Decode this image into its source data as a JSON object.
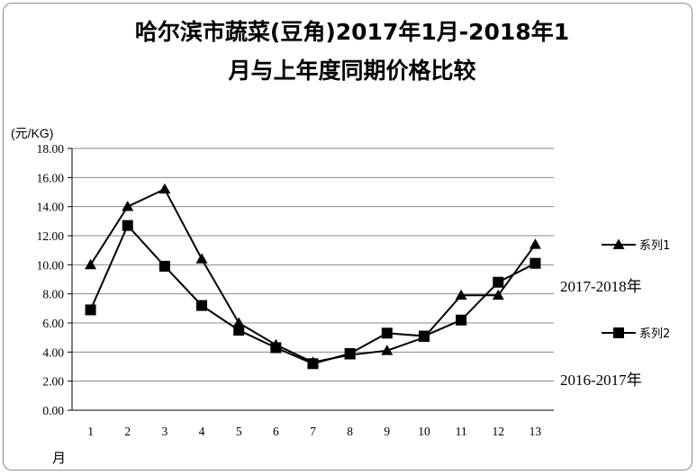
{
  "chart_data": {
    "type": "line",
    "title_lines": [
      "哈尔滨市蔬菜(豆角)2017年1月-2018年1",
      "月与上年度同期价格比较"
    ],
    "ylabel": "(元/KG)",
    "xlabel": "月",
    "x": [
      1,
      2,
      3,
      4,
      5,
      6,
      7,
      8,
      9,
      10,
      11,
      12,
      13
    ],
    "y_ticks": [
      "0.00",
      "2.00",
      "4.00",
      "6.00",
      "8.00",
      "10.00",
      "12.00",
      "14.00",
      "16.00",
      "18.00"
    ],
    "ylim": [
      0,
      18
    ],
    "grid": true,
    "legend_position": "right",
    "series": [
      {
        "name": "系列1",
        "annotation": "2017-2018年",
        "marker": "triangle",
        "color": "#000000",
        "values": [
          10.0,
          14.0,
          15.2,
          10.4,
          6.0,
          4.5,
          3.3,
          3.8,
          4.1,
          5.0,
          7.9,
          7.9,
          11.4
        ]
      },
      {
        "name": "系列2",
        "annotation": "2016-2017年",
        "marker": "square",
        "color": "#000000",
        "values": [
          6.9,
          12.7,
          9.9,
          7.2,
          5.5,
          4.3,
          3.2,
          3.9,
          5.3,
          5.1,
          6.2,
          8.8,
          10.1
        ]
      }
    ]
  }
}
